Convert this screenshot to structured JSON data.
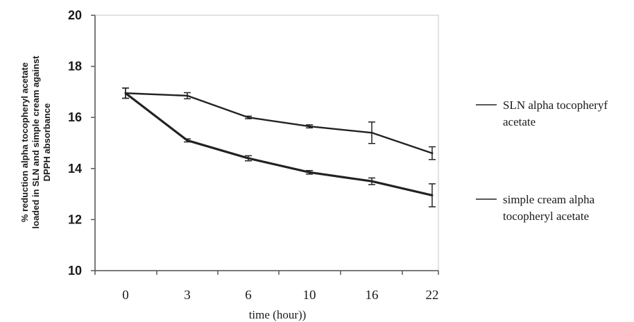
{
  "chart_data": {
    "type": "line",
    "x": [
      "0",
      "3",
      "6",
      "10",
      "16",
      "22"
    ],
    "xlabel": "time (hour))",
    "ylabel_lines": [
      "% reduction alpha tocopheryl acetate",
      "loaded in SLN and simple cream against",
      "DPPH absorbance"
    ],
    "ylim": [
      10,
      20
    ],
    "yticks": [
      "10",
      "12",
      "14",
      "16",
      "18",
      "20"
    ],
    "grid": false,
    "legend_position": "right",
    "series": [
      {
        "name_lines": [
          "SLN alpha tocopheryf",
          "acetate"
        ],
        "values": [
          16.95,
          16.85,
          16.0,
          15.65,
          15.4,
          14.6
        ],
        "errors": [
          0.2,
          0.12,
          0.05,
          0.06,
          0.42,
          0.25
        ],
        "color": "#222222"
      },
      {
        "name_lines": [
          "simple cream alpha",
          "tocopheryl acetate"
        ],
        "values": [
          16.95,
          15.1,
          14.4,
          13.85,
          13.5,
          12.95
        ],
        "errors": [
          0.2,
          0.06,
          0.1,
          0.07,
          0.13,
          0.45
        ],
        "color": "#222222"
      }
    ]
  }
}
